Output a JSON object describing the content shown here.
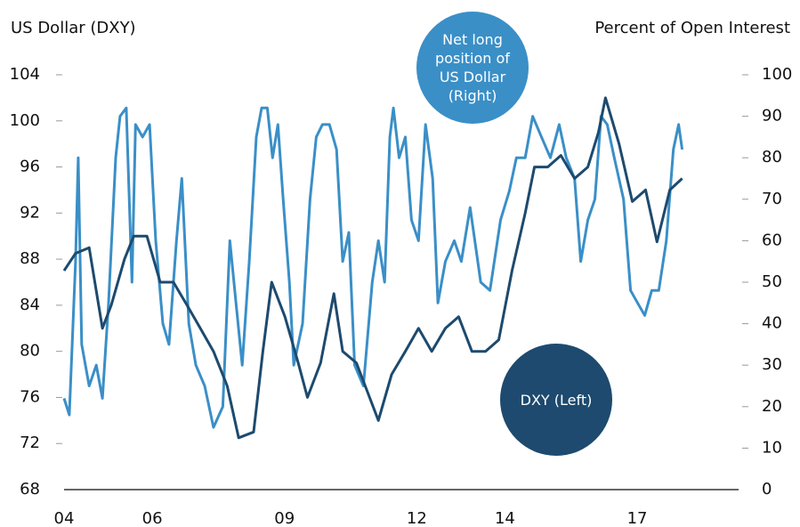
{
  "chart_data": {
    "type": "line",
    "ylabel": "US Dollar (DXY)",
    "y2label": "Percent of Open Interest",
    "xlim": [
      2004,
      2019.3
    ],
    "xticks": [
      {
        "value": 2004,
        "label": "04"
      },
      {
        "value": 2006,
        "label": "06"
      },
      {
        "value": 2009,
        "label": "09"
      },
      {
        "value": 2012,
        "label": "12"
      },
      {
        "value": 2014,
        "label": "14"
      },
      {
        "value": 2017,
        "label": "17"
      }
    ],
    "ylim": [
      68,
      104
    ],
    "yticks": [
      68,
      72,
      76,
      80,
      84,
      88,
      92,
      96,
      100,
      104
    ],
    "y2lim": [
      0,
      100
    ],
    "y2ticks": [
      0,
      10,
      20,
      30,
      40,
      50,
      60,
      70,
      80,
      90,
      100
    ],
    "series": [
      {
        "name": "Net long position of US Dollar (Right)",
        "color": "#3a8fc7",
        "axis": "y2",
        "x": [
          2004.0,
          2004.12,
          2004.26,
          2004.32,
          2004.4,
          2004.57,
          2004.73,
          2004.87,
          2005.01,
          2005.17,
          2005.27,
          2005.41,
          2005.54,
          2005.62,
          2005.78,
          2005.94,
          2006.08,
          2006.24,
          2006.38,
          2006.55,
          2006.67,
          2006.83,
          2006.99,
          2007.19,
          2007.39,
          2007.6,
          2007.76,
          2007.9,
          2008.04,
          2008.2,
          2008.36,
          2008.48,
          2008.61,
          2008.73,
          2008.85,
          2008.97,
          2009.11,
          2009.21,
          2009.41,
          2009.58,
          2009.72,
          2009.86,
          2010.02,
          2010.18,
          2010.32,
          2010.46,
          2010.59,
          2010.79,
          2010.99,
          2011.13,
          2011.27,
          2011.39,
          2011.47,
          2011.6,
          2011.74,
          2011.88,
          2012.04,
          2012.2,
          2012.36,
          2012.48,
          2012.65,
          2012.85,
          2013.01,
          2013.21,
          2013.45,
          2013.66,
          2013.9,
          2014.1,
          2014.26,
          2014.46,
          2014.63,
          2014.83,
          2015.03,
          2015.23,
          2015.39,
          2015.58,
          2015.72,
          2015.88,
          2016.04,
          2016.18,
          2016.32,
          2016.48,
          2016.69,
          2016.85,
          2017.01,
          2017.17,
          2017.33,
          2017.49,
          2017.66,
          2017.82,
          2017.94,
          2018.02
        ],
        "values": [
          22,
          18,
          55,
          80,
          35,
          25,
          30,
          22,
          45,
          80,
          90,
          92,
          50,
          88,
          85,
          88,
          60,
          40,
          35,
          60,
          75,
          40,
          30,
          25,
          15,
          20,
          60,
          45,
          30,
          55,
          85,
          92,
          92,
          80,
          88,
          70,
          50,
          30,
          40,
          70,
          85,
          88,
          88,
          82,
          55,
          62,
          30,
          25,
          50,
          60,
          50,
          85,
          92,
          80,
          85,
          65,
          60,
          88,
          75,
          45,
          55,
          60,
          55,
          68,
          50,
          48,
          65,
          72,
          80,
          80,
          90,
          85,
          80,
          88,
          80,
          75,
          55,
          65,
          70,
          90,
          88,
          80,
          70,
          48,
          45,
          42,
          48,
          48,
          60,
          82,
          88,
          82
        ]
      },
      {
        "name": "DXY (Left)",
        "color": "#1d4a6e",
        "x": [
          2004.0,
          2004.26,
          2004.57,
          2004.87,
          2005.07,
          2005.37,
          2005.58,
          2005.88,
          2006.18,
          2006.48,
          2006.79,
          2007.09,
          2007.39,
          2007.7,
          2007.96,
          2008.3,
          2008.51,
          2008.71,
          2009.01,
          2009.31,
          2009.52,
          2009.82,
          2010.12,
          2010.32,
          2010.63,
          2010.93,
          2011.13,
          2011.43,
          2011.74,
          2012.04,
          2012.34,
          2012.65,
          2012.95,
          2013.25,
          2013.56,
          2013.86,
          2014.16,
          2014.46,
          2014.67,
          2014.97,
          2015.27,
          2015.58,
          2015.88,
          2016.12,
          2016.28,
          2016.59,
          2016.89,
          2017.19,
          2017.45,
          2017.74,
          2018.02
        ],
        "values": [
          87,
          88.5,
          89,
          82,
          84,
          88,
          90,
          90,
          86,
          86,
          84,
          82,
          80,
          77,
          72.5,
          73,
          80,
          86,
          83,
          79,
          76,
          79,
          85,
          80,
          79,
          76,
          74,
          78,
          80,
          82,
          80,
          82,
          83,
          80,
          80,
          81,
          87,
          92,
          96,
          96,
          97,
          95,
          96,
          99,
          102,
          98,
          93,
          94,
          89.5,
          94,
          95
        ]
      }
    ]
  }
}
